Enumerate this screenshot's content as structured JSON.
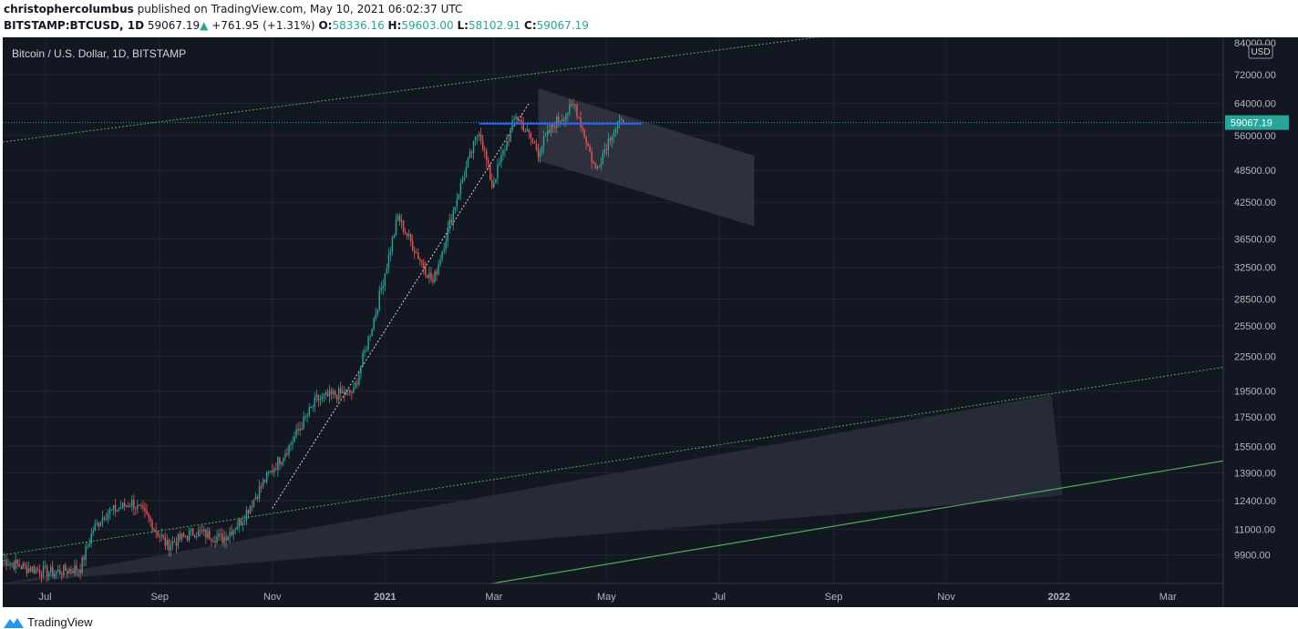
{
  "header": {
    "author": "christophercolumbus",
    "published_text": "published on TradingView.com, May 10, 2021 06:02:37 UTC",
    "symbol": "BITSTAMP:BTCUSD, 1D",
    "last": "59067.19",
    "change": "+761.95 (+1.31%)",
    "open_label": "O:",
    "open": "58336.16",
    "high_label": "H:",
    "high": "59603.00",
    "low_label": "L:",
    "low": "58102.91",
    "close_label": "C:",
    "close": "59067.19"
  },
  "chart_title": "Bitcoin / U.S. Dollar, 1D, BITSTAMP",
  "currency": "USD",
  "price_tag": "59067.19",
  "footer": {
    "brand": "TradingView"
  },
  "colors": {
    "background": "#131722",
    "up": "#26a69a",
    "down": "#ef5350",
    "channel": "#4caf50",
    "resistance": "#2962ff",
    "price_tag": "#26a69a"
  },
  "chart_data": {
    "type": "candlestick",
    "title": "Bitcoin / U.S. Dollar, 1D, BITSTAMP",
    "y_scale": "log",
    "ylim": [
      8800,
      84000
    ],
    "xlim": [
      "2020-06-08",
      "2022-03-31"
    ],
    "y_ticks": [
      "84000.00",
      "72000.00",
      "64000.00",
      "56000.00",
      "48500.00",
      "42500.00",
      "36500.00",
      "32500.00",
      "28500.00",
      "25500.00",
      "22500.00",
      "19500.00",
      "17500.00",
      "15500.00",
      "13900.00",
      "12400.00",
      "11000.00",
      "9900.00"
    ],
    "x_ticks": [
      {
        "label": "Jul",
        "date": "2020-07-01"
      },
      {
        "label": "Sep",
        "date": "2020-09-01"
      },
      {
        "label": "Nov",
        "date": "2020-11-01"
      },
      {
        "label": "2021",
        "date": "2021-01-01"
      },
      {
        "label": "Mar",
        "date": "2021-03-01"
      },
      {
        "label": "May",
        "date": "2021-05-01"
      },
      {
        "label": "Jul",
        "date": "2021-07-01"
      },
      {
        "label": "Sep",
        "date": "2021-09-01"
      },
      {
        "label": "Nov",
        "date": "2021-11-01"
      },
      {
        "label": "2022",
        "date": "2022-01-01"
      },
      {
        "label": "Mar",
        "date": "2022-03-01"
      }
    ],
    "price_path": [
      [
        "2020-06-08",
        9700
      ],
      [
        "2020-06-20",
        9400
      ],
      [
        "2020-07-05",
        9200
      ],
      [
        "2020-07-20",
        9400
      ],
      [
        "2020-07-27",
        11000
      ],
      [
        "2020-08-02",
        11700
      ],
      [
        "2020-08-17",
        12300
      ],
      [
        "2020-08-25",
        11600
      ],
      [
        "2020-09-05",
        10300
      ],
      [
        "2020-09-20",
        10900
      ],
      [
        "2020-10-05",
        10600
      ],
      [
        "2020-10-15",
        11400
      ],
      [
        "2020-10-28",
        13500
      ],
      [
        "2020-11-10",
        15500
      ],
      [
        "2020-11-25",
        18800
      ],
      [
        "2020-12-05",
        19200
      ],
      [
        "2020-12-15",
        19400
      ],
      [
        "2020-12-27",
        27000
      ],
      [
        "2021-01-08",
        40000
      ],
      [
        "2021-01-15",
        36000
      ],
      [
        "2021-01-27",
        30500
      ],
      [
        "2021-02-10",
        44500
      ],
      [
        "2021-02-21",
        57500
      ],
      [
        "2021-02-28",
        45500
      ],
      [
        "2021-03-13",
        61000
      ],
      [
        "2021-03-25",
        52500
      ],
      [
        "2021-04-03",
        59000
      ],
      [
        "2021-04-14",
        63500
      ],
      [
        "2021-04-25",
        48500
      ],
      [
        "2021-05-04",
        57000
      ],
      [
        "2021-05-10",
        59067
      ]
    ],
    "annotations": {
      "resistance": {
        "start": "2021-02-21",
        "end": "2021-05-20",
        "price": 58800
      },
      "trendline": {
        "start": [
          "2020-11-01",
          12000
        ],
        "end": [
          "2021-03-20",
          64000
        ]
      },
      "upper_channel": {
        "start": [
          "2020-06-08",
          54500
        ],
        "end": [
          "2021-11-01",
          90000
        ]
      },
      "mid_channel": {
        "start": [
          "2020-06-08",
          9900
        ],
        "end": [
          "2022-03-31",
          21500
        ]
      },
      "lower_channel": {
        "start": [
          "2021-02-28",
          8800
        ],
        "end": [
          "2022-03-31",
          14600
        ]
      },
      "flag": {
        "tl": [
          "2021-03-25",
          68000
        ],
        "tr": [
          "2021-07-20",
          51500
        ],
        "br": [
          "2021-07-20",
          38500
        ],
        "bl": [
          "2021-03-25",
          50500
        ]
      },
      "box": {
        "p1": [
          "2020-06-08",
          8800
        ],
        "p2": [
          "2021-12-28",
          19200
        ],
        "p3": [
          "2022-01-03",
          12700
        ],
        "p4": [
          "2021-12-28",
          12600
        ],
        "p5": [
          "2020-06-08",
          8800
        ]
      }
    },
    "price_line": 59067.19
  }
}
